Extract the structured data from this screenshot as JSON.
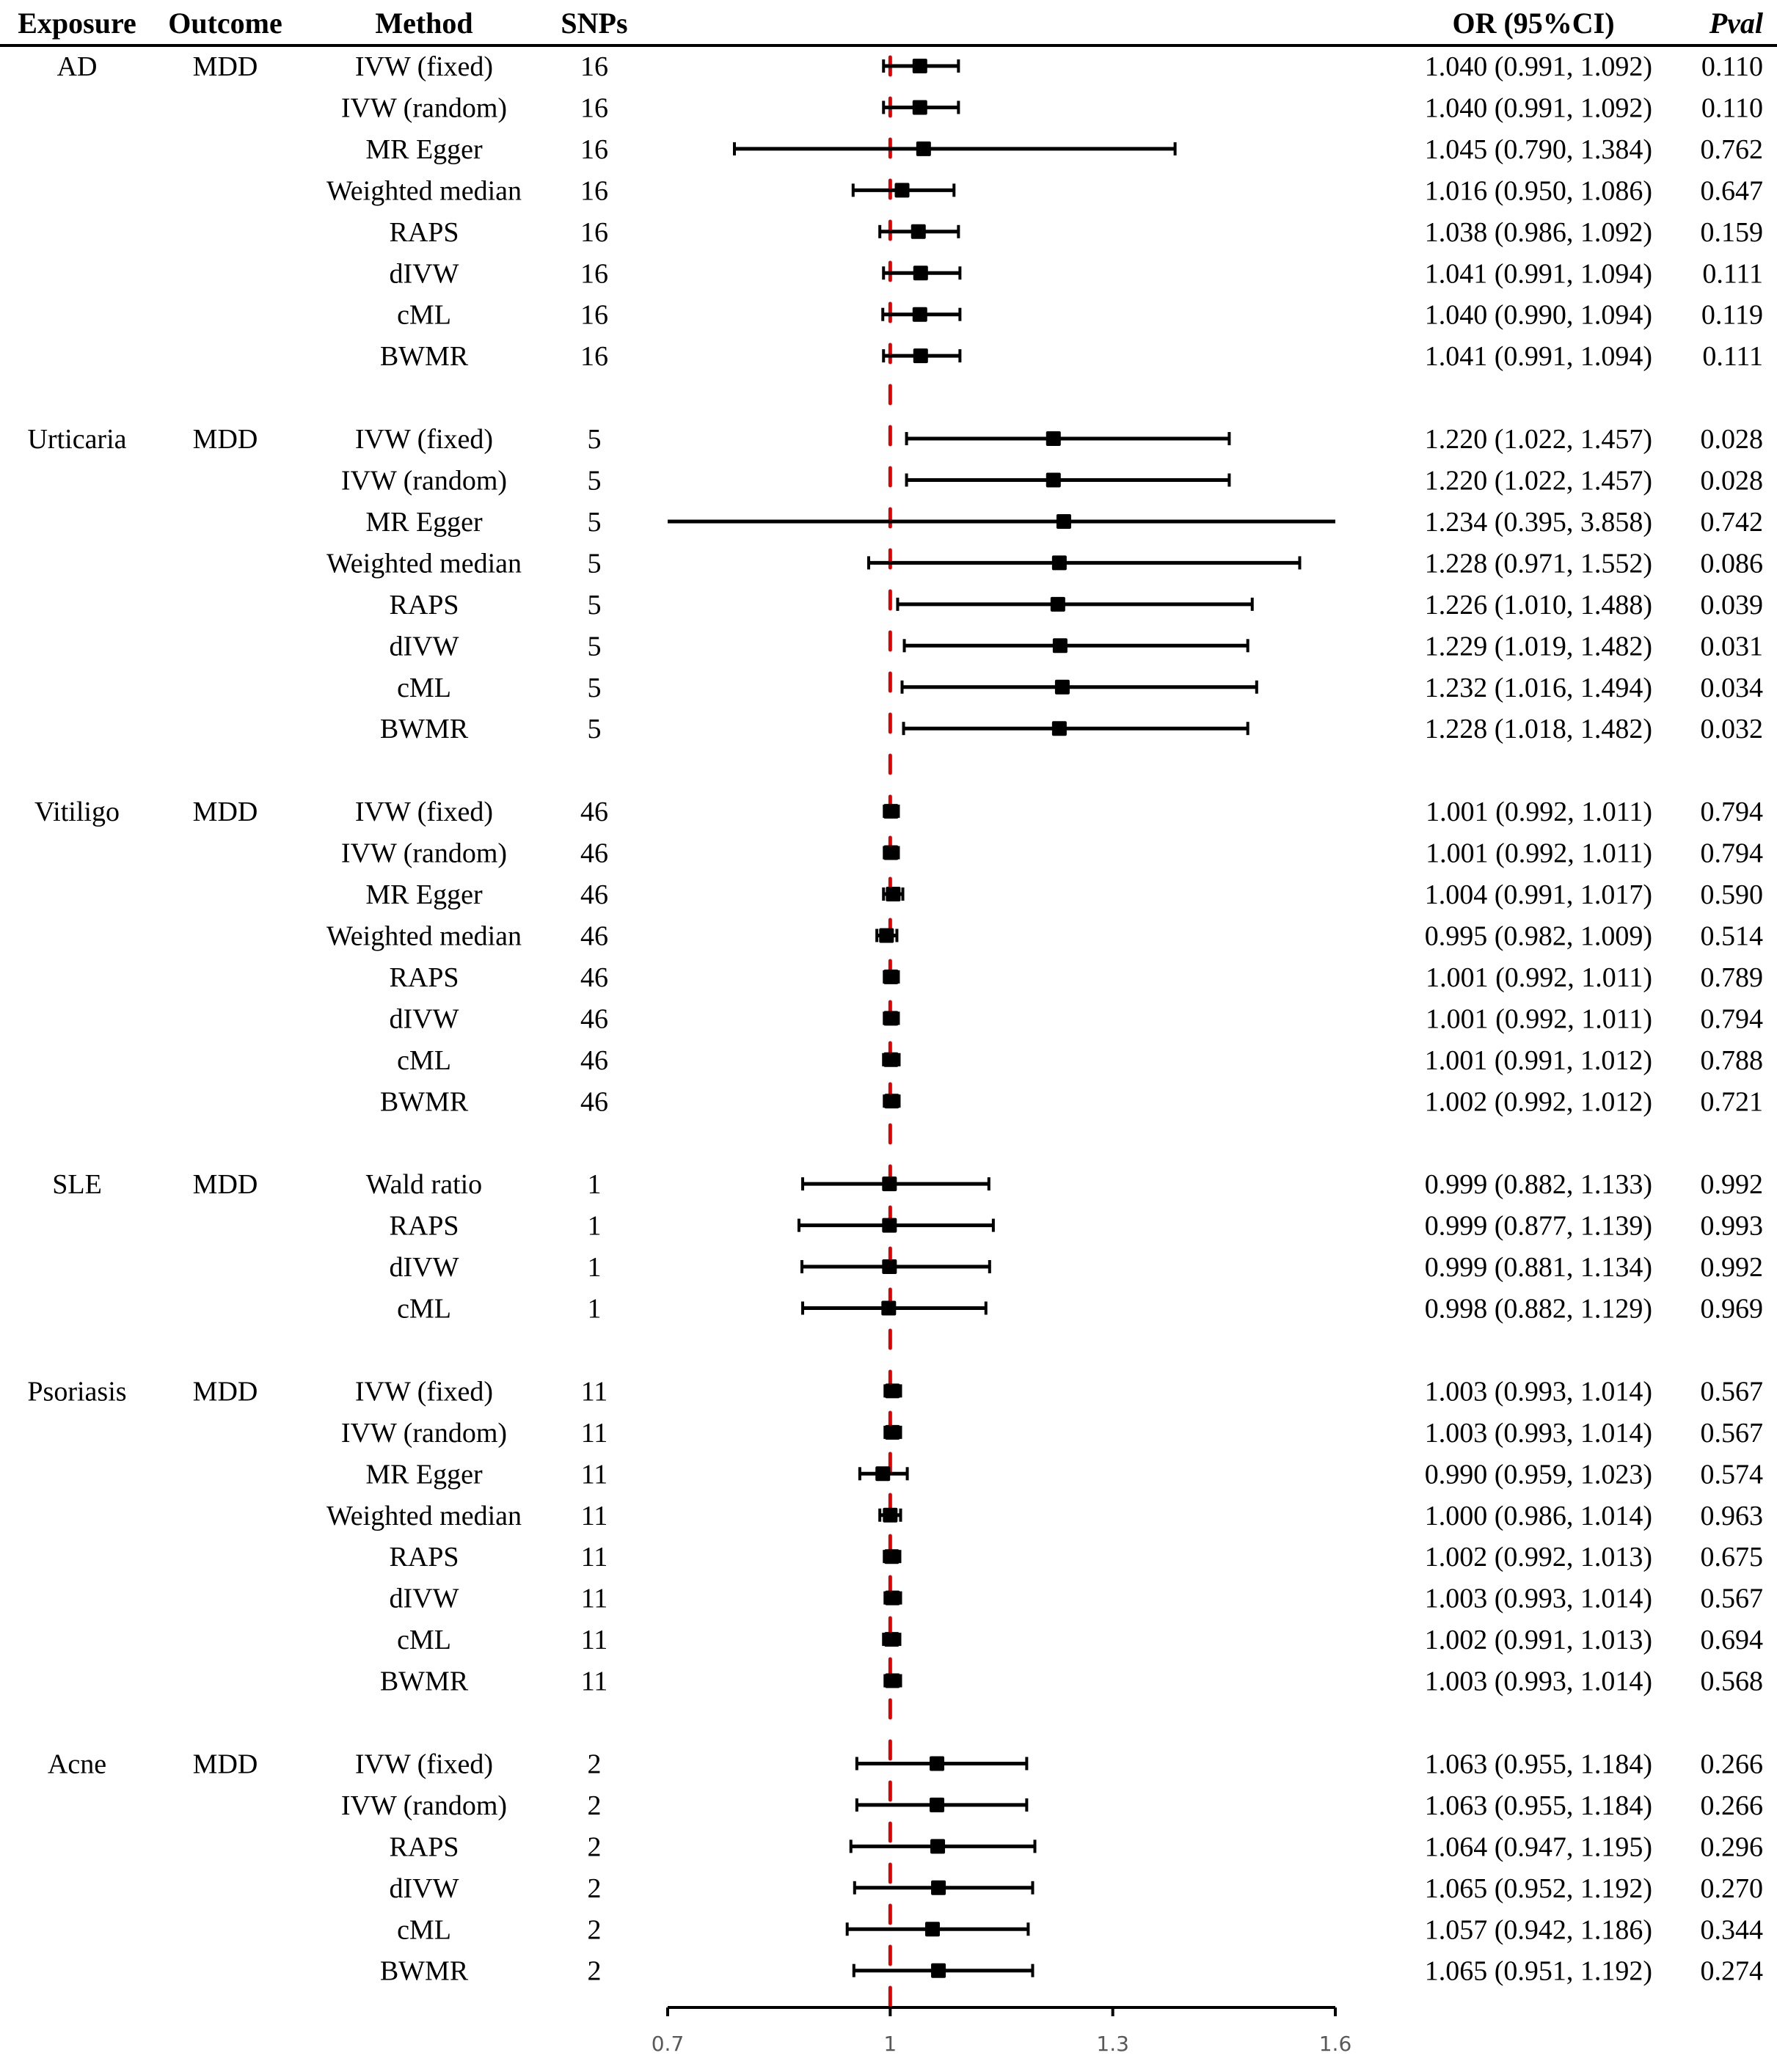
{
  "chart_data": {
    "type": "forest",
    "title": "",
    "xlabel": "",
    "columns": {
      "exposure": "Exposure",
      "outcome": "Outcome",
      "method": "Method",
      "snps": "SNPs",
      "or_ci": "OR (95%CI)",
      "pval": "Pval"
    },
    "xlim": [
      0.7,
      1.6
    ],
    "x_ticks": [
      0.7,
      1,
      1.3,
      1.6
    ],
    "x_tick_labels": [
      "0.7",
      "1",
      "1.3",
      "1.6"
    ],
    "reference_line": 1,
    "reference_line_color": "#e00000",
    "marker_color": "#000000",
    "groups": [
      {
        "exposure": "AD",
        "outcome": "MDD",
        "rows": [
          {
            "method": "IVW (fixed)",
            "snps": "16",
            "or": 1.04,
            "lo": 0.991,
            "hi": 1.092,
            "or_ci": "1.040 (0.991, 1.092)",
            "pval": "0.110"
          },
          {
            "method": "IVW (random)",
            "snps": "16",
            "or": 1.04,
            "lo": 0.991,
            "hi": 1.092,
            "or_ci": "1.040 (0.991, 1.092)",
            "pval": "0.110"
          },
          {
            "method": "MR Egger",
            "snps": "16",
            "or": 1.045,
            "lo": 0.79,
            "hi": 1.384,
            "or_ci": "1.045 (0.790, 1.384)",
            "pval": "0.762"
          },
          {
            "method": "Weighted median",
            "snps": "16",
            "or": 1.016,
            "lo": 0.95,
            "hi": 1.086,
            "or_ci": "1.016 (0.950, 1.086)",
            "pval": "0.647"
          },
          {
            "method": "RAPS",
            "snps": "16",
            "or": 1.038,
            "lo": 0.986,
            "hi": 1.092,
            "or_ci": "1.038 (0.986, 1.092)",
            "pval": "0.159"
          },
          {
            "method": "dIVW",
            "snps": "16",
            "or": 1.041,
            "lo": 0.991,
            "hi": 1.094,
            "or_ci": "1.041 (0.991, 1.094)",
            "pval": "0.111"
          },
          {
            "method": "cML",
            "snps": "16",
            "or": 1.04,
            "lo": 0.99,
            "hi": 1.094,
            "or_ci": "1.040 (0.990, 1.094)",
            "pval": "0.119"
          },
          {
            "method": "BWMR",
            "snps": "16",
            "or": 1.041,
            "lo": 0.991,
            "hi": 1.094,
            "or_ci": "1.041 (0.991, 1.094)",
            "pval": "0.111"
          }
        ]
      },
      {
        "exposure": "Urticaria",
        "outcome": "MDD",
        "rows": [
          {
            "method": "IVW (fixed)",
            "snps": "5",
            "or": 1.22,
            "lo": 1.022,
            "hi": 1.457,
            "or_ci": "1.220 (1.022, 1.457)",
            "pval": "0.028"
          },
          {
            "method": "IVW (random)",
            "snps": "5",
            "or": 1.22,
            "lo": 1.022,
            "hi": 1.457,
            "or_ci": "1.220 (1.022, 1.457)",
            "pval": "0.028"
          },
          {
            "method": "MR Egger",
            "snps": "5",
            "or": 1.234,
            "lo": 0.395,
            "hi": 3.858,
            "or_ci": "1.234 (0.395, 3.858)",
            "pval": "0.742"
          },
          {
            "method": "Weighted median",
            "snps": "5",
            "or": 1.228,
            "lo": 0.971,
            "hi": 1.552,
            "or_ci": "1.228 (0.971, 1.552)",
            "pval": "0.086"
          },
          {
            "method": "RAPS",
            "snps": "5",
            "or": 1.226,
            "lo": 1.01,
            "hi": 1.488,
            "or_ci": "1.226 (1.010, 1.488)",
            "pval": "0.039"
          },
          {
            "method": "dIVW",
            "snps": "5",
            "or": 1.229,
            "lo": 1.019,
            "hi": 1.482,
            "or_ci": "1.229 (1.019, 1.482)",
            "pval": "0.031"
          },
          {
            "method": "cML",
            "snps": "5",
            "or": 1.232,
            "lo": 1.016,
            "hi": 1.494,
            "or_ci": "1.232 (1.016, 1.494)",
            "pval": "0.034"
          },
          {
            "method": "BWMR",
            "snps": "5",
            "or": 1.228,
            "lo": 1.018,
            "hi": 1.482,
            "or_ci": "1.228 (1.018, 1.482)",
            "pval": "0.032"
          }
        ]
      },
      {
        "exposure": "Vitiligo",
        "outcome": "MDD",
        "rows": [
          {
            "method": "IVW (fixed)",
            "snps": "46",
            "or": 1.001,
            "lo": 0.992,
            "hi": 1.011,
            "or_ci": "1.001 (0.992, 1.011)",
            "pval": "0.794"
          },
          {
            "method": "IVW (random)",
            "snps": "46",
            "or": 1.001,
            "lo": 0.992,
            "hi": 1.011,
            "or_ci": "1.001 (0.992, 1.011)",
            "pval": "0.794"
          },
          {
            "method": "MR Egger",
            "snps": "46",
            "or": 1.004,
            "lo": 0.991,
            "hi": 1.017,
            "or_ci": "1.004 (0.991, 1.017)",
            "pval": "0.590"
          },
          {
            "method": "Weighted median",
            "snps": "46",
            "or": 0.995,
            "lo": 0.982,
            "hi": 1.009,
            "or_ci": "0.995 (0.982, 1.009)",
            "pval": "0.514"
          },
          {
            "method": "RAPS",
            "snps": "46",
            "or": 1.001,
            "lo": 0.992,
            "hi": 1.011,
            "or_ci": "1.001 (0.992, 1.011)",
            "pval": "0.789"
          },
          {
            "method": "dIVW",
            "snps": "46",
            "or": 1.001,
            "lo": 0.992,
            "hi": 1.011,
            "or_ci": "1.001 (0.992, 1.011)",
            "pval": "0.794"
          },
          {
            "method": "cML",
            "snps": "46",
            "or": 1.001,
            "lo": 0.991,
            "hi": 1.012,
            "or_ci": "1.001 (0.991, 1.012)",
            "pval": "0.788"
          },
          {
            "method": "BWMR",
            "snps": "46",
            "or": 1.002,
            "lo": 0.992,
            "hi": 1.012,
            "or_ci": "1.002 (0.992, 1.012)",
            "pval": "0.721"
          }
        ]
      },
      {
        "exposure": "SLE",
        "outcome": "MDD",
        "rows": [
          {
            "method": "Wald ratio",
            "snps": "1",
            "or": 0.999,
            "lo": 0.882,
            "hi": 1.133,
            "or_ci": "0.999 (0.882, 1.133)",
            "pval": "0.992"
          },
          {
            "method": "RAPS",
            "snps": "1",
            "or": 0.999,
            "lo": 0.877,
            "hi": 1.139,
            "or_ci": "0.999 (0.877, 1.139)",
            "pval": "0.993"
          },
          {
            "method": "dIVW",
            "snps": "1",
            "or": 0.999,
            "lo": 0.881,
            "hi": 1.134,
            "or_ci": "0.999 (0.881, 1.134)",
            "pval": "0.992"
          },
          {
            "method": "cML",
            "snps": "1",
            "or": 0.998,
            "lo": 0.882,
            "hi": 1.129,
            "or_ci": "0.998 (0.882, 1.129)",
            "pval": "0.969"
          }
        ]
      },
      {
        "exposure": "Psoriasis",
        "outcome": "MDD",
        "rows": [
          {
            "method": "IVW (fixed)",
            "snps": "11",
            "or": 1.003,
            "lo": 0.993,
            "hi": 1.014,
            "or_ci": "1.003 (0.993, 1.014)",
            "pval": "0.567"
          },
          {
            "method": "IVW (random)",
            "snps": "11",
            "or": 1.003,
            "lo": 0.993,
            "hi": 1.014,
            "or_ci": "1.003 (0.993, 1.014)",
            "pval": "0.567"
          },
          {
            "method": "MR Egger",
            "snps": "11",
            "or": 0.99,
            "lo": 0.959,
            "hi": 1.023,
            "or_ci": "0.990 (0.959, 1.023)",
            "pval": "0.574"
          },
          {
            "method": "Weighted median",
            "snps": "11",
            "or": 1.0,
            "lo": 0.986,
            "hi": 1.014,
            "or_ci": "1.000 (0.986, 1.014)",
            "pval": "0.963"
          },
          {
            "method": "RAPS",
            "snps": "11",
            "or": 1.002,
            "lo": 0.992,
            "hi": 1.013,
            "or_ci": "1.002 (0.992, 1.013)",
            "pval": "0.675"
          },
          {
            "method": "dIVW",
            "snps": "11",
            "or": 1.003,
            "lo": 0.993,
            "hi": 1.014,
            "or_ci": "1.003 (0.993, 1.014)",
            "pval": "0.567"
          },
          {
            "method": "cML",
            "snps": "11",
            "or": 1.002,
            "lo": 0.991,
            "hi": 1.013,
            "or_ci": "1.002 (0.991, 1.013)",
            "pval": "0.694"
          },
          {
            "method": "BWMR",
            "snps": "11",
            "or": 1.003,
            "lo": 0.993,
            "hi": 1.014,
            "or_ci": "1.003 (0.993, 1.014)",
            "pval": "0.568"
          }
        ]
      },
      {
        "exposure": "Acne",
        "outcome": "MDD",
        "rows": [
          {
            "method": "IVW (fixed)",
            "snps": "2",
            "or": 1.063,
            "lo": 0.955,
            "hi": 1.184,
            "or_ci": "1.063 (0.955, 1.184)",
            "pval": "0.266"
          },
          {
            "method": "IVW (random)",
            "snps": "2",
            "or": 1.063,
            "lo": 0.955,
            "hi": 1.184,
            "or_ci": "1.063 (0.955, 1.184)",
            "pval": "0.266"
          },
          {
            "method": "RAPS",
            "snps": "2",
            "or": 1.064,
            "lo": 0.947,
            "hi": 1.195,
            "or_ci": "1.064 (0.947, 1.195)",
            "pval": "0.296"
          },
          {
            "method": "dIVW",
            "snps": "2",
            "or": 1.065,
            "lo": 0.952,
            "hi": 1.192,
            "or_ci": "1.065 (0.952, 1.192)",
            "pval": "0.270"
          },
          {
            "method": "cML",
            "snps": "2",
            "or": 1.057,
            "lo": 0.942,
            "hi": 1.186,
            "or_ci": "1.057 (0.942, 1.186)",
            "pval": "0.344"
          },
          {
            "method": "BWMR",
            "snps": "2",
            "or": 1.065,
            "lo": 0.951,
            "hi": 1.192,
            "or_ci": "1.065 (0.951, 1.192)",
            "pval": "0.274"
          }
        ]
      }
    ]
  }
}
